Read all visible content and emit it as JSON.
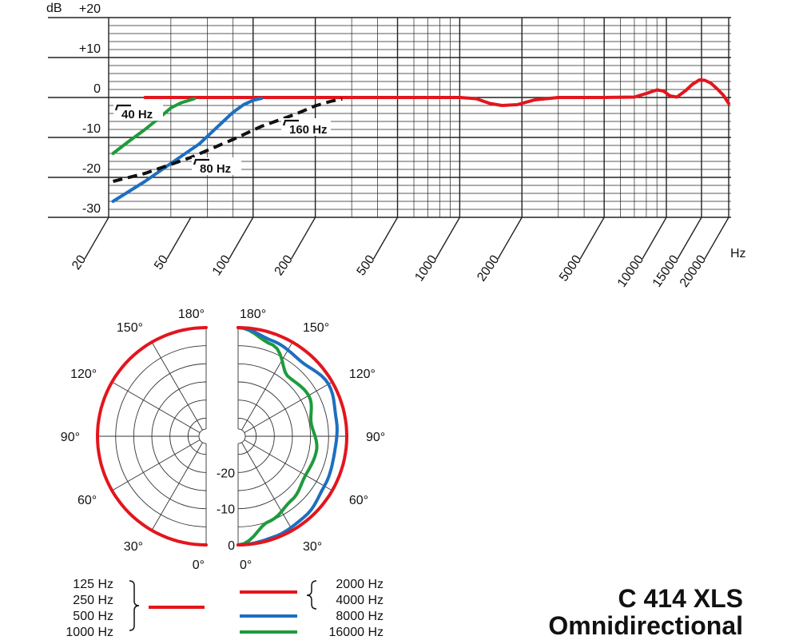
{
  "chart_data": [
    {
      "type": "line",
      "title": "",
      "xlabel": "Hz",
      "ylabel": "dB",
      "x_scale": "log",
      "xlim": [
        20,
        20000
      ],
      "ylim": [
        -30,
        20
      ],
      "x_ticks": [
        "20",
        "50",
        "100",
        "200",
        "500",
        "1000",
        "2000",
        "5000",
        "10000",
        "15000",
        "20000"
      ],
      "y_ticks": [
        "+20",
        "+10",
        "0",
        "-10",
        "-20",
        "-30"
      ],
      "grid": true,
      "series": [
        {
          "color": "#e3151d",
          "dash": false,
          "points": [
            [
              30,
              0
            ],
            [
              100,
              0
            ],
            [
              500,
              0
            ],
            [
              1000,
              0
            ],
            [
              1200,
              -0.3
            ],
            [
              1400,
              -1.5
            ],
            [
              1600,
              -2
            ],
            [
              1900,
              -1.8
            ],
            [
              2300,
              -0.6
            ],
            [
              3000,
              0
            ],
            [
              5000,
              0
            ],
            [
              7000,
              0.1
            ],
            [
              8000,
              1
            ],
            [
              9000,
              1.9
            ],
            [
              9700,
              1.6
            ],
            [
              10500,
              0.4
            ],
            [
              11500,
              0.1
            ],
            [
              12800,
              1.8
            ],
            [
              13700,
              3.3
            ],
            [
              14700,
              4.4
            ],
            [
              15600,
              4.3
            ],
            [
              16700,
              3.6
            ],
            [
              18000,
              2
            ],
            [
              19000,
              0.6
            ],
            [
              20000,
              -1.5
            ]
          ]
        },
        {
          "color": "#1f9a3c",
          "dash": false,
          "points": [
            [
              21,
              -14
            ],
            [
              25,
              -11
            ],
            [
              30,
              -8
            ],
            [
              35,
              -5.2
            ],
            [
              40,
              -2.6
            ],
            [
              45,
              -1.3
            ],
            [
              52,
              -0.3
            ]
          ]
        },
        {
          "color": "#1d6fc0",
          "dash": false,
          "points": [
            [
              21,
              -26
            ],
            [
              30,
              -21
            ],
            [
              40,
              -16.5
            ],
            [
              55,
              -11.6
            ],
            [
              70,
              -6.5
            ],
            [
              80,
              -3.7
            ],
            [
              90,
              -1.8
            ],
            [
              100,
              -0.7
            ],
            [
              110,
              -0.2
            ]
          ]
        },
        {
          "color": "#111111",
          "dash": true,
          "points": [
            [
              21,
              -21
            ],
            [
              30,
              -19
            ],
            [
              50,
              -15
            ],
            [
              80,
              -10.5
            ],
            [
              110,
              -7.2
            ],
            [
              160,
              -4.2
            ],
            [
              200,
              -2.1
            ],
            [
              240,
              -0.9
            ],
            [
              270,
              -0.4
            ]
          ]
        }
      ],
      "annotations": [
        "40 Hz",
        "80 Hz",
        "160 Hz"
      ]
    },
    {
      "type": "polar",
      "angle_labels_left": [
        "180°",
        "150°",
        "120°",
        "90°",
        "60°",
        "30°",
        "0°"
      ],
      "angle_labels_right": [
        "180°",
        "150°",
        "120°",
        "90°",
        "60°",
        "30°",
        "0°"
      ],
      "db_labels": [
        "-20",
        "-10",
        "0"
      ],
      "rlim": [
        -30,
        0
      ],
      "left_series": [
        {
          "color": "#e3151d",
          "angles": [
            0,
            30,
            60,
            90,
            120,
            150,
            180
          ],
          "db": [
            0,
            0,
            0,
            0,
            0,
            0,
            0
          ]
        }
      ],
      "right_series": [
        {
          "color": "#e3151d",
          "angles": [
            0,
            30,
            60,
            90,
            120,
            150,
            180
          ],
          "db": [
            0,
            0,
            0,
            0,
            0,
            0,
            0
          ]
        },
        {
          "color": "#1d6fc0",
          "angles": [
            0,
            20,
            40,
            60,
            80,
            100,
            120,
            140,
            160,
            180
          ],
          "db": [
            0,
            -0.5,
            -1.2,
            -2.5,
            -3,
            -2.5,
            -1.2,
            -3,
            -2,
            0
          ]
        },
        {
          "color": "#1f9a3c",
          "angles": [
            0,
            20,
            40,
            60,
            80,
            100,
            120,
            140,
            160,
            180
          ],
          "db": [
            0,
            -5,
            -7,
            -8.5,
            -8,
            -9.5,
            -7.5,
            -8.5,
            -3,
            0
          ]
        }
      ]
    }
  ],
  "legend": {
    "left_group": [
      "125 Hz",
      "250 Hz",
      "500 Hz",
      "1000 Hz"
    ],
    "left_color": "#e3151d",
    "right_items": [
      {
        "labels": [
          "2000 Hz",
          "4000 Hz"
        ],
        "color": "#e3151d"
      },
      {
        "labels": [
          "8000 Hz"
        ],
        "color": "#1d6fc0"
      },
      {
        "labels": [
          "16000 Hz"
        ],
        "color": "#1f9a3c"
      }
    ]
  },
  "title_block": {
    "model": "C 414 XLS",
    "pattern": "Omnidirectional"
  }
}
